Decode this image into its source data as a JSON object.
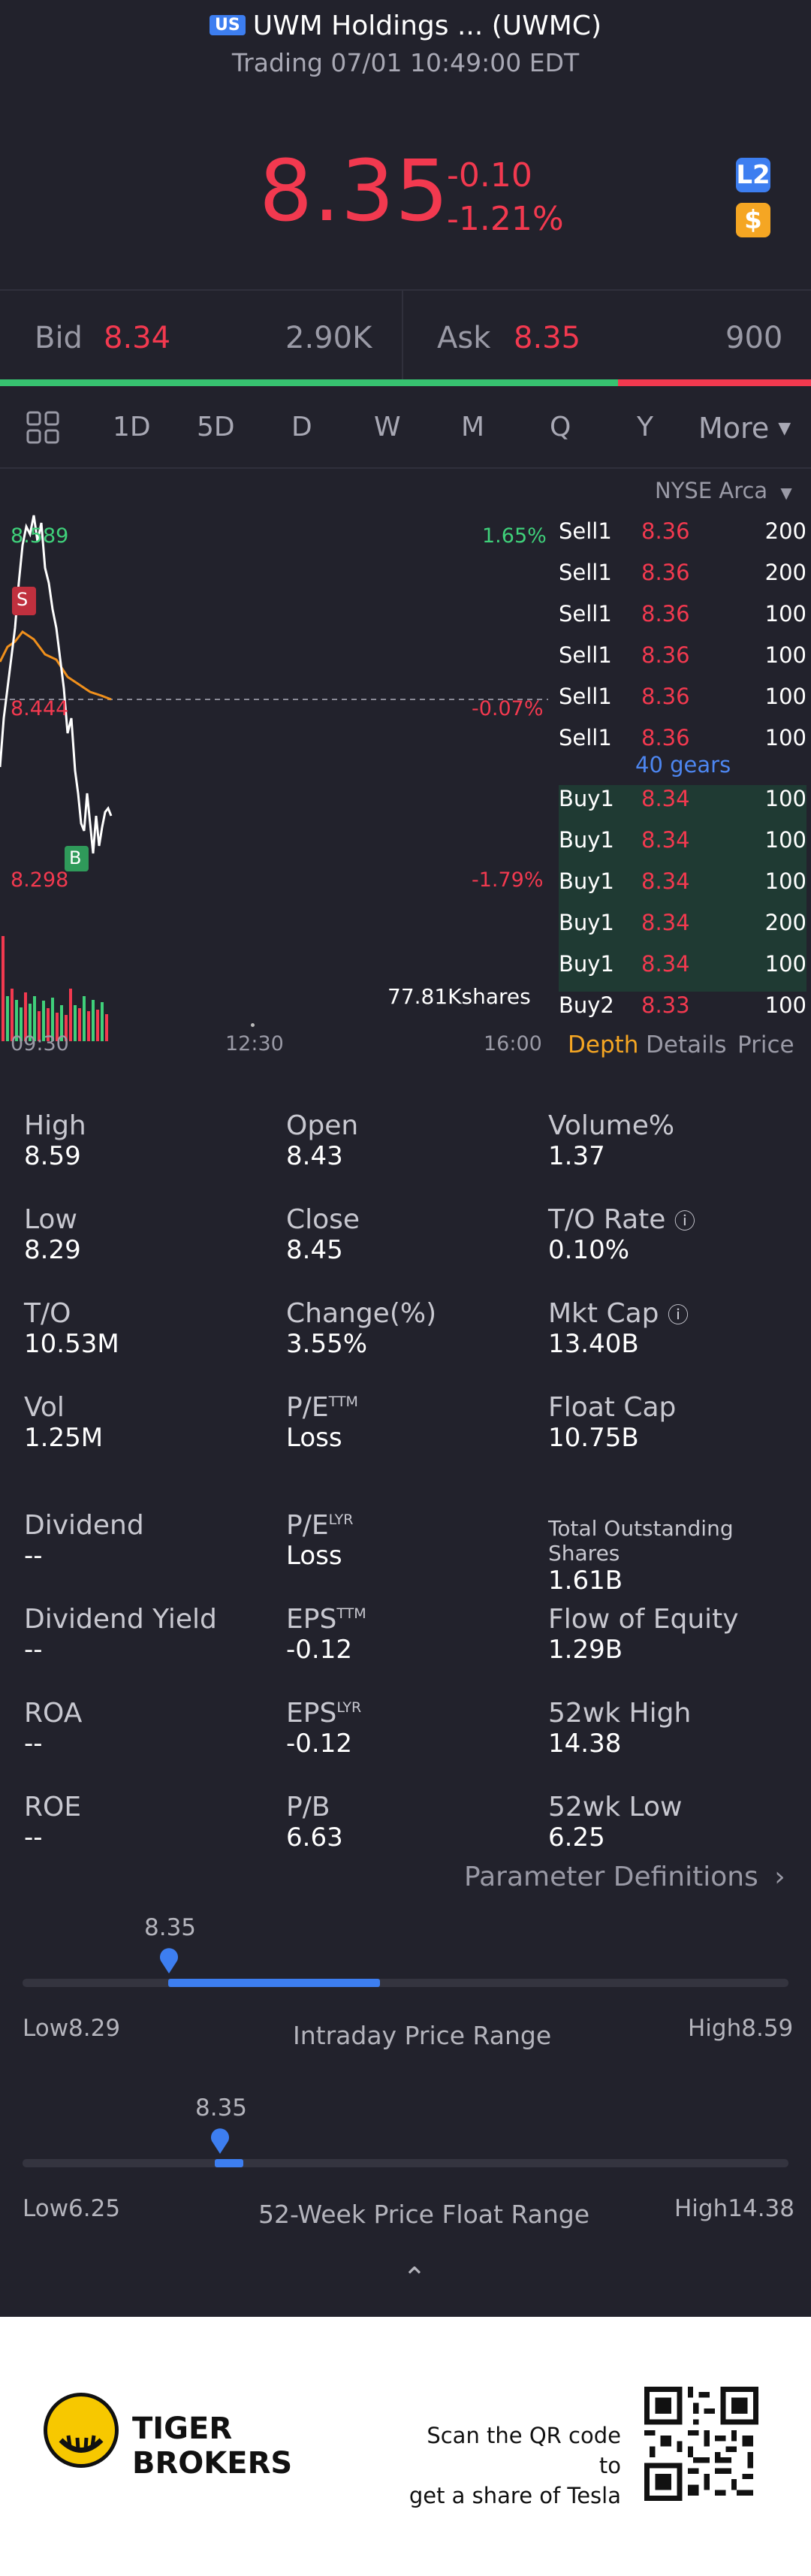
{
  "header": {
    "market_badge": "US",
    "title": "UWM Holdings ... (UWMC)",
    "subtitle": "Trading 07/01 10:49:00 EDT",
    "price": "8.35",
    "change": "-0.10",
    "change_pct": "-1.21%",
    "l2_badge": "L2",
    "currency_badge": "$"
  },
  "quote_bar": {
    "bid_label": "Bid",
    "bid_price": "8.34",
    "bid_size": "2.90K",
    "ask_label": "Ask",
    "ask_price": "8.35",
    "ask_size": "900",
    "bid_share": 0.762
  },
  "tabs": {
    "items": [
      "1D",
      "5D",
      "D",
      "W",
      "M",
      "Q",
      "Y"
    ],
    "active": "1D",
    "more": "More"
  },
  "chart": {
    "high_label": "8.589",
    "high_pct": "1.65%",
    "mid_label": "8.444",
    "mid_pct": "-0.07%",
    "low_label": "8.298",
    "low_pct": "-1.79%",
    "volume": "77.81Kshares",
    "time_start": "09:30",
    "time_mid": "12:30",
    "time_end": "16:00",
    "marker_s": "S",
    "marker_b": "B"
  },
  "orderbook": {
    "exchange": "NYSE Arca",
    "sells": [
      {
        "label": "Sell1",
        "price": "8.36",
        "size": "200"
      },
      {
        "label": "Sell1",
        "price": "8.36",
        "size": "200"
      },
      {
        "label": "Sell1",
        "price": "8.36",
        "size": "100"
      },
      {
        "label": "Sell1",
        "price": "8.36",
        "size": "100"
      },
      {
        "label": "Sell1",
        "price": "8.36",
        "size": "100"
      },
      {
        "label": "Sell1",
        "price": "8.36",
        "size": "100"
      }
    ],
    "gears": "40 gears",
    "buys": [
      {
        "label": "Buy1",
        "price": "8.34",
        "size": "100"
      },
      {
        "label": "Buy1",
        "price": "8.34",
        "size": "100"
      },
      {
        "label": "Buy1",
        "price": "8.34",
        "size": "100"
      },
      {
        "label": "Buy1",
        "price": "8.34",
        "size": "200"
      },
      {
        "label": "Buy1",
        "price": "8.34",
        "size": "100"
      },
      {
        "label": "Buy2",
        "price": "8.33",
        "size": "100"
      }
    ],
    "tab_depth": "Depth",
    "tab_details": "Details",
    "tab_price": "Price"
  },
  "stats": {
    "high": {
      "label": "High",
      "value": "8.59"
    },
    "open": {
      "label": "Open",
      "value": "8.43"
    },
    "volume_pct": {
      "label": "Volume%",
      "value": "1.37"
    },
    "low": {
      "label": "Low",
      "value": "8.29"
    },
    "close": {
      "label": "Close",
      "value": "8.45"
    },
    "to_rate": {
      "label": "T/O Rate",
      "value": "0.10%"
    },
    "to": {
      "label": "T/O",
      "value": "10.53M"
    },
    "change_pct": {
      "label": "Change(%)",
      "value": "3.55%"
    },
    "mkt_cap": {
      "label": "Mkt Cap",
      "value": "13.40B"
    },
    "vol": {
      "label": "Vol",
      "value": "1.25M"
    },
    "pe_ttm": {
      "label": "P/E",
      "sup": "TTM",
      "value": "Loss"
    },
    "float_cap": {
      "label": "Float Cap",
      "value": "10.75B"
    },
    "dividend": {
      "label": "Dividend",
      "value": "--"
    },
    "pe_lyr": {
      "label": "P/E",
      "sup": "LYR",
      "value": "Loss"
    },
    "total_shares": {
      "label": "Total Outstanding Shares",
      "value": "1.61B"
    },
    "div_yield": {
      "label": "Dividend Yield",
      "value": "--"
    },
    "eps_ttm": {
      "label": "EPS",
      "sup": "TTM",
      "value": "-0.12"
    },
    "flow_equity": {
      "label": "Flow of Equity",
      "value": "1.29B"
    },
    "roa": {
      "label": "ROA",
      "value": "--"
    },
    "eps_lyr": {
      "label": "EPS",
      "sup": "LYR",
      "value": "-0.12"
    },
    "wk52_high": {
      "label": "52wk High",
      "value": "14.38"
    },
    "roe": {
      "label": "ROE",
      "value": "--"
    },
    "pb": {
      "label": "P/B",
      "value": "6.63"
    },
    "wk52_low": {
      "label": "52wk Low",
      "value": "6.25"
    }
  },
  "param_defs": "Parameter Definitions",
  "intraday_range": {
    "current": "8.35",
    "low_label": "Low",
    "low": "8.29",
    "title": "Intraday Price Range",
    "high_label": "High",
    "high": "8.59",
    "marker_fraction": 0.2
  },
  "week52_range": {
    "current": "8.35",
    "low_label": "Low",
    "low": "6.25",
    "title": "52-Week Price Float Range",
    "high_label": "High",
    "high": "14.38",
    "marker_fraction": 0.258
  },
  "footer": {
    "brand_line1": "TIGER",
    "brand_line2": "BROKERS",
    "qr_line1": "Scan the QR code to",
    "qr_line2": "get a share of Tesla"
  }
}
